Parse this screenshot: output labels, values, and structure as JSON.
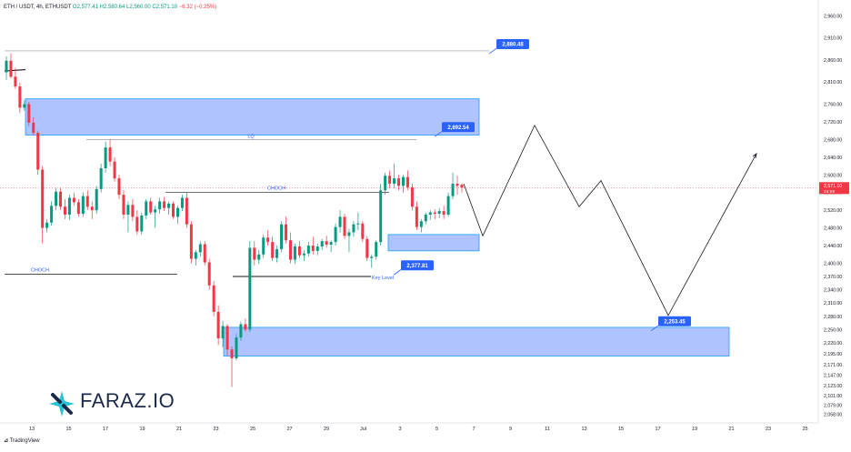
{
  "header": {
    "symbol": "ETH / USDT, 4h, ETHUSDT",
    "open": "O2,577.41",
    "high": "H2,580.64",
    "low": "L2,560.00",
    "close": "C2,571.10",
    "change": "−6.32 (−0.25%)"
  },
  "brand": {
    "logo_text": "FARAZ.IO",
    "tradingview": "TradingView"
  },
  "colors": {
    "up": "#089981",
    "down": "#f23645",
    "zone": "#2962ff",
    "label": "#2962ff"
  },
  "chart_data": {
    "type": "candlestick",
    "symbol": "ETHUSDT",
    "timeframe": "4h",
    "y_axis_ticks": [
      "2,960.00",
      "2,910.00",
      "2,860.00",
      "2,810.00",
      "2,760.00",
      "2,720.00",
      "2,680.00",
      "2,640.00",
      "2,600.00",
      "2,560.00",
      "2,520.00",
      "2,480.00",
      "2,440.00",
      "2,400.00",
      "2,370.00",
      "2,340.00",
      "2,310.00",
      "2,280.00",
      "2,250.00",
      "2,220.00",
      "2,195.00",
      "2,171.00",
      "2,147.00",
      "2,123.00",
      "2,101.00",
      "2,079.00",
      "2,058.00"
    ],
    "ylim": [
      2045,
      2975
    ],
    "x_axis_ticks": [
      "13",
      "15",
      "17",
      "19",
      "21",
      "23",
      "25",
      "27",
      "29",
      "Jul",
      "3",
      "5",
      "7",
      "9",
      "11",
      "13",
      "15",
      "17",
      "19",
      "21",
      "23",
      "25"
    ],
    "current_price": {
      "price": "2,571.10",
      "countdown": "24:59",
      "value": 2571.1
    },
    "levels": [
      {
        "label": "2,880.48",
        "value": 2880.48
      },
      {
        "label": "2,692.54",
        "value": 2692.54
      },
      {
        "label": "2,377.81",
        "value": 2377.81
      },
      {
        "label": "2,253.45",
        "value": 2253.45
      }
    ],
    "annotations": [
      {
        "text": "LQ",
        "value": 2680
      },
      {
        "text": "CHOCH",
        "value": 2560
      },
      {
        "text": "CHOCH",
        "value": 2375
      },
      {
        "text": "Key Level",
        "value": 2370
      }
    ],
    "zones": [
      {
        "name": "supply-zone",
        "top": 2772,
        "bottom": 2690
      },
      {
        "name": "demand-zone-small",
        "top": 2465,
        "bottom": 2428
      },
      {
        "name": "demand-zone-large",
        "top": 2255,
        "bottom": 2190
      }
    ],
    "projection_path": [
      2580,
      2462,
      2712,
      2528,
      2587,
      2282,
      2648
    ],
    "ohlc": [
      [
        2832,
        2868,
        2815,
        2858
      ],
      [
        2858,
        2875,
        2818,
        2822
      ],
      [
        2822,
        2842,
        2795,
        2800
      ],
      [
        2800,
        2808,
        2740,
        2752
      ],
      [
        2752,
        2770,
        2745,
        2760
      ],
      [
        2760,
        2765,
        2710,
        2718
      ],
      [
        2718,
        2730,
        2690,
        2695
      ],
      [
        2695,
        2700,
        2600,
        2612
      ],
      [
        2612,
        2620,
        2445,
        2480
      ],
      [
        2480,
        2500,
        2470,
        2492
      ],
      [
        2492,
        2540,
        2485,
        2530
      ],
      [
        2530,
        2570,
        2520,
        2562
      ],
      [
        2562,
        2570,
        2520,
        2528
      ],
      [
        2528,
        2545,
        2500,
        2510
      ],
      [
        2510,
        2555,
        2498,
        2548
      ],
      [
        2548,
        2560,
        2530,
        2538
      ],
      [
        2538,
        2545,
        2505,
        2512
      ],
      [
        2512,
        2560,
        2505,
        2552
      ],
      [
        2552,
        2565,
        2520,
        2528
      ],
      [
        2528,
        2540,
        2500,
        2520
      ],
      [
        2520,
        2575,
        2512,
        2568
      ],
      [
        2568,
        2625,
        2560,
        2615
      ],
      [
        2615,
        2675,
        2605,
        2662
      ],
      [
        2662,
        2680,
        2620,
        2630
      ],
      [
        2630,
        2640,
        2585,
        2592
      ],
      [
        2592,
        2600,
        2545,
        2555
      ],
      [
        2555,
        2565,
        2500,
        2510
      ],
      [
        2510,
        2540,
        2470,
        2532
      ],
      [
        2532,
        2545,
        2495,
        2505
      ],
      [
        2505,
        2520,
        2465,
        2472
      ],
      [
        2472,
        2515,
        2465,
        2508
      ],
      [
        2508,
        2545,
        2500,
        2540
      ],
      [
        2540,
        2548,
        2510,
        2515
      ],
      [
        2515,
        2530,
        2480,
        2522
      ],
      [
        2522,
        2548,
        2512,
        2540
      ],
      [
        2540,
        2550,
        2518,
        2525
      ],
      [
        2525,
        2540,
        2510,
        2535
      ],
      [
        2535,
        2540,
        2500,
        2505
      ],
      [
        2505,
        2530,
        2490,
        2525
      ],
      [
        2525,
        2555,
        2518,
        2548
      ],
      [
        2548,
        2560,
        2480,
        2488
      ],
      [
        2488,
        2495,
        2400,
        2410
      ],
      [
        2410,
        2430,
        2395,
        2425
      ],
      [
        2425,
        2450,
        2415,
        2443
      ],
      [
        2443,
        2450,
        2395,
        2402
      ],
      [
        2402,
        2410,
        2340,
        2350
      ],
      [
        2350,
        2360,
        2280,
        2290
      ],
      [
        2290,
        2305,
        2215,
        2230
      ],
      [
        2230,
        2270,
        2210,
        2258
      ],
      [
        2258,
        2262,
        2190,
        2205
      ],
      [
        2205,
        2212,
        2120,
        2185
      ],
      [
        2185,
        2240,
        2180,
        2232
      ],
      [
        2232,
        2268,
        2225,
        2262
      ],
      [
        2262,
        2275,
        2245,
        2250
      ],
      [
        2250,
        2450,
        2245,
        2435
      ],
      [
        2435,
        2450,
        2395,
        2408
      ],
      [
        2408,
        2430,
        2398,
        2420
      ],
      [
        2420,
        2465,
        2412,
        2458
      ],
      [
        2458,
        2475,
        2440,
        2448
      ],
      [
        2448,
        2460,
        2405,
        2412
      ],
      [
        2412,
        2440,
        2402,
        2432
      ],
      [
        2432,
        2495,
        2425,
        2488
      ],
      [
        2488,
        2505,
        2445,
        2452
      ],
      [
        2452,
        2470,
        2400,
        2408
      ],
      [
        2408,
        2445,
        2398,
        2438
      ],
      [
        2438,
        2450,
        2412,
        2418
      ],
      [
        2418,
        2430,
        2405,
        2422
      ],
      [
        2422,
        2448,
        2415,
        2440
      ],
      [
        2440,
        2460,
        2420,
        2428
      ],
      [
        2428,
        2445,
        2418,
        2438
      ],
      [
        2438,
        2455,
        2430,
        2450
      ],
      [
        2450,
        2462,
        2435,
        2442
      ],
      [
        2442,
        2452,
        2425,
        2448
      ],
      [
        2448,
        2490,
        2440,
        2482
      ],
      [
        2482,
        2520,
        2470,
        2505
      ],
      [
        2505,
        2512,
        2455,
        2462
      ],
      [
        2462,
        2478,
        2425,
        2470
      ],
      [
        2470,
        2495,
        2460,
        2488
      ],
      [
        2488,
        2515,
        2475,
        2490
      ],
      [
        2490,
        2495,
        2448,
        2455
      ],
      [
        2455,
        2462,
        2405,
        2412
      ],
      [
        2412,
        2420,
        2390,
        2415
      ],
      [
        2415,
        2452,
        2408,
        2448
      ],
      [
        2448,
        2580,
        2440,
        2565
      ],
      [
        2565,
        2605,
        2555,
        2598
      ],
      [
        2598,
        2610,
        2570,
        2580
      ],
      [
        2580,
        2625,
        2570,
        2592
      ],
      [
        2592,
        2600,
        2565,
        2575
      ],
      [
        2575,
        2600,
        2560,
        2595
      ],
      [
        2595,
        2610,
        2565,
        2572
      ],
      [
        2572,
        2580,
        2520,
        2528
      ],
      [
        2528,
        2540,
        2475,
        2482
      ],
      [
        2482,
        2500,
        2470,
        2495
      ],
      [
        2495,
        2515,
        2488,
        2510
      ],
      [
        2510,
        2520,
        2498,
        2515
      ],
      [
        2515,
        2522,
        2500,
        2512
      ],
      [
        2512,
        2525,
        2502,
        2518
      ],
      [
        2518,
        2530,
        2500,
        2510
      ],
      [
        2510,
        2560,
        2505,
        2552
      ],
      [
        2552,
        2605,
        2545,
        2580
      ],
      [
        2580,
        2598,
        2555,
        2575
      ],
      [
        2577.41,
        2580.64,
        2560,
        2571.1
      ]
    ]
  }
}
